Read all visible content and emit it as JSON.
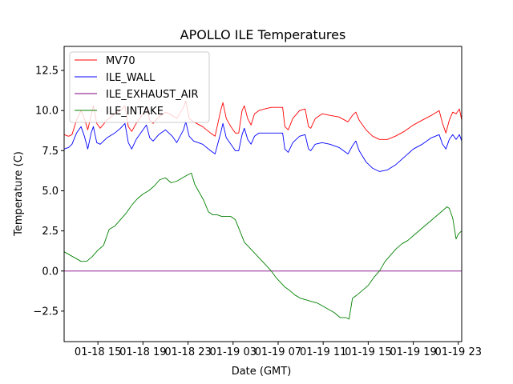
{
  "chart_data": {
    "type": "line",
    "title": "APOLLO ILE Temperatures",
    "xlabel": "Date (GMT)",
    "ylabel": "Temperature (C)",
    "xlim": [
      12.0,
      47.3
    ],
    "ylim": [
      -4.4,
      14.0
    ],
    "grid": false,
    "legend_position": "top-left",
    "x_unit": "hours since 01-18 00:00 GMT",
    "x_ticks": [
      {
        "value": 15,
        "label": "01-18 15"
      },
      {
        "value": 19,
        "label": "01-18 19"
      },
      {
        "value": 23,
        "label": "01-18 23"
      },
      {
        "value": 27,
        "label": "01-19 03"
      },
      {
        "value": 31,
        "label": "01-19 07"
      },
      {
        "value": 35,
        "label": "01-19 11"
      },
      {
        "value": 39,
        "label": "01-19 15"
      },
      {
        "value": 43,
        "label": "01-19 19"
      },
      {
        "value": 47,
        "label": "01-19 23"
      }
    ],
    "y_ticks": [
      {
        "value": -2.5,
        "label": "−2.5"
      },
      {
        "value": 0.0,
        "label": "0.0"
      },
      {
        "value": 2.5,
        "label": "2.5"
      },
      {
        "value": 5.0,
        "label": "5.0"
      },
      {
        "value": 7.5,
        "label": "7.5"
      },
      {
        "value": 10.0,
        "label": "10.0"
      },
      {
        "value": 12.5,
        "label": "12.5"
      }
    ],
    "series": [
      {
        "name": "MV70",
        "color": "#ff0000",
        "points": [
          [
            12.0,
            8.5
          ],
          [
            12.4,
            8.4
          ],
          [
            12.7,
            8.5
          ],
          [
            13.1,
            9.4
          ],
          [
            13.5,
            10.0
          ],
          [
            13.8,
            9.5
          ],
          [
            14.1,
            8.8
          ],
          [
            14.4,
            9.7
          ],
          [
            14.6,
            10.3
          ],
          [
            14.9,
            9.2
          ],
          [
            15.2,
            8.9
          ],
          [
            15.8,
            9.4
          ],
          [
            16.5,
            9.8
          ],
          [
            17.0,
            10.0
          ],
          [
            17.4,
            10.3
          ],
          [
            17.7,
            9.0
          ],
          [
            18.0,
            8.7
          ],
          [
            18.4,
            9.2
          ],
          [
            19.0,
            9.8
          ],
          [
            19.3,
            10.2
          ],
          [
            19.6,
            9.4
          ],
          [
            19.9,
            9.2
          ],
          [
            20.4,
            9.6
          ],
          [
            21.0,
            9.9
          ],
          [
            21.6,
            9.7
          ],
          [
            22.0,
            9.5
          ],
          [
            22.6,
            10.2
          ],
          [
            22.8,
            10.6
          ],
          [
            23.1,
            9.5
          ],
          [
            23.5,
            9.3
          ],
          [
            24.3,
            9.0
          ],
          [
            25.0,
            8.6
          ],
          [
            25.4,
            8.4
          ],
          [
            25.9,
            10.0
          ],
          [
            26.1,
            10.5
          ],
          [
            26.4,
            9.5
          ],
          [
            26.8,
            9.0
          ],
          [
            27.2,
            8.6
          ],
          [
            27.5,
            8.6
          ],
          [
            27.8,
            10.0
          ],
          [
            28.0,
            10.3
          ],
          [
            28.3,
            9.5
          ],
          [
            28.6,
            9.1
          ],
          [
            28.9,
            9.8
          ],
          [
            29.3,
            10.0
          ],
          [
            29.8,
            10.1
          ],
          [
            30.4,
            10.2
          ],
          [
            31.0,
            10.2
          ],
          [
            31.4,
            10.2
          ],
          [
            31.6,
            9.0
          ],
          [
            31.9,
            8.8
          ],
          [
            32.3,
            9.5
          ],
          [
            32.9,
            10.0
          ],
          [
            33.4,
            10.1
          ],
          [
            33.7,
            9.0
          ],
          [
            33.9,
            8.9
          ],
          [
            34.3,
            9.5
          ],
          [
            34.9,
            9.8
          ],
          [
            35.6,
            9.7
          ],
          [
            36.4,
            9.6
          ],
          [
            37.2,
            9.3
          ],
          [
            37.6,
            9.7
          ],
          [
            37.9,
            9.9
          ],
          [
            38.2,
            9.4
          ],
          [
            38.8,
            8.8
          ],
          [
            39.4,
            8.4
          ],
          [
            40.0,
            8.2
          ],
          [
            40.7,
            8.2
          ],
          [
            41.4,
            8.4
          ],
          [
            42.2,
            8.7
          ],
          [
            43.0,
            9.1
          ],
          [
            43.8,
            9.4
          ],
          [
            44.6,
            9.7
          ],
          [
            45.3,
            10.0
          ],
          [
            45.6,
            9.2
          ],
          [
            45.9,
            8.6
          ],
          [
            46.2,
            9.4
          ],
          [
            46.5,
            9.9
          ],
          [
            46.8,
            9.8
          ],
          [
            47.1,
            10.1
          ],
          [
            47.3,
            9.4
          ]
        ]
      },
      {
        "name": "ILE_WALL",
        "color": "#0000ff",
        "points": [
          [
            12.0,
            7.6
          ],
          [
            12.4,
            7.7
          ],
          [
            12.7,
            7.9
          ],
          [
            13.1,
            8.6
          ],
          [
            13.5,
            9.0
          ],
          [
            13.8,
            8.4
          ],
          [
            14.1,
            7.6
          ],
          [
            14.4,
            8.6
          ],
          [
            14.6,
            9.0
          ],
          [
            14.9,
            8.0
          ],
          [
            15.2,
            7.9
          ],
          [
            15.8,
            8.3
          ],
          [
            16.5,
            8.6
          ],
          [
            17.0,
            8.9
          ],
          [
            17.4,
            9.2
          ],
          [
            17.7,
            8.0
          ],
          [
            18.0,
            7.6
          ],
          [
            18.4,
            8.2
          ],
          [
            19.0,
            8.8
          ],
          [
            19.3,
            9.1
          ],
          [
            19.6,
            8.3
          ],
          [
            19.9,
            8.1
          ],
          [
            20.4,
            8.5
          ],
          [
            21.0,
            8.8
          ],
          [
            21.6,
            8.4
          ],
          [
            22.0,
            8.0
          ],
          [
            22.6,
            8.8
          ],
          [
            22.8,
            9.3
          ],
          [
            23.1,
            8.4
          ],
          [
            23.5,
            8.1
          ],
          [
            24.3,
            7.9
          ],
          [
            25.0,
            7.5
          ],
          [
            25.4,
            7.3
          ],
          [
            25.9,
            8.6
          ],
          [
            26.1,
            9.2
          ],
          [
            26.4,
            8.3
          ],
          [
            26.8,
            7.9
          ],
          [
            27.2,
            7.5
          ],
          [
            27.5,
            7.5
          ],
          [
            27.8,
            8.5
          ],
          [
            28.0,
            8.9
          ],
          [
            28.3,
            8.2
          ],
          [
            28.6,
            7.9
          ],
          [
            28.9,
            8.4
          ],
          [
            29.3,
            8.6
          ],
          [
            29.8,
            8.6
          ],
          [
            30.4,
            8.6
          ],
          [
            31.0,
            8.6
          ],
          [
            31.4,
            8.6
          ],
          [
            31.6,
            7.6
          ],
          [
            31.9,
            7.4
          ],
          [
            32.3,
            8.0
          ],
          [
            32.9,
            8.4
          ],
          [
            33.4,
            8.5
          ],
          [
            33.7,
            7.6
          ],
          [
            33.9,
            7.5
          ],
          [
            34.3,
            7.9
          ],
          [
            34.9,
            8.0
          ],
          [
            35.6,
            7.9
          ],
          [
            36.4,
            7.7
          ],
          [
            37.2,
            7.3
          ],
          [
            37.6,
            7.8
          ],
          [
            37.9,
            8.1
          ],
          [
            38.2,
            7.5
          ],
          [
            38.8,
            6.8
          ],
          [
            39.4,
            6.4
          ],
          [
            40.0,
            6.2
          ],
          [
            40.7,
            6.3
          ],
          [
            41.4,
            6.6
          ],
          [
            42.2,
            7.1
          ],
          [
            43.0,
            7.6
          ],
          [
            43.8,
            7.9
          ],
          [
            44.6,
            8.3
          ],
          [
            45.3,
            8.5
          ],
          [
            45.6,
            7.9
          ],
          [
            45.9,
            7.6
          ],
          [
            46.2,
            8.2
          ],
          [
            46.5,
            8.5
          ],
          [
            46.8,
            8.2
          ],
          [
            47.1,
            8.5
          ],
          [
            47.3,
            8.1
          ]
        ]
      },
      {
        "name": "ILE_EXHAUST_AIR",
        "color": "#800080",
        "points": [
          [
            12.0,
            0.0
          ],
          [
            47.3,
            0.0
          ]
        ]
      },
      {
        "name": "ILE_INTAKE",
        "color": "#008000",
        "points": [
          [
            12.0,
            1.2
          ],
          [
            12.5,
            1.0
          ],
          [
            13.0,
            0.8
          ],
          [
            13.5,
            0.6
          ],
          [
            14.0,
            0.6
          ],
          [
            14.5,
            0.9
          ],
          [
            15.0,
            1.3
          ],
          [
            15.5,
            1.6
          ],
          [
            16.0,
            2.6
          ],
          [
            16.5,
            2.8
          ],
          [
            17.0,
            3.2
          ],
          [
            17.5,
            3.6
          ],
          [
            18.0,
            4.1
          ],
          [
            18.5,
            4.5
          ],
          [
            19.0,
            4.8
          ],
          [
            19.5,
            5.0
          ],
          [
            20.0,
            5.3
          ],
          [
            20.5,
            5.7
          ],
          [
            21.0,
            5.8
          ],
          [
            21.5,
            5.5
          ],
          [
            22.0,
            5.6
          ],
          [
            22.5,
            5.8
          ],
          [
            23.0,
            6.0
          ],
          [
            23.3,
            6.1
          ],
          [
            23.6,
            5.4
          ],
          [
            24.0,
            4.9
          ],
          [
            24.4,
            4.4
          ],
          [
            24.8,
            3.7
          ],
          [
            25.2,
            3.5
          ],
          [
            25.6,
            3.5
          ],
          [
            26.0,
            3.4
          ],
          [
            26.4,
            3.4
          ],
          [
            26.8,
            3.4
          ],
          [
            27.2,
            3.2
          ],
          [
            27.6,
            2.5
          ],
          [
            28.0,
            1.8
          ],
          [
            28.4,
            1.5
          ],
          [
            28.8,
            1.2
          ],
          [
            29.2,
            0.9
          ],
          [
            29.6,
            0.6
          ],
          [
            30.0,
            0.3
          ],
          [
            30.4,
            0.0
          ],
          [
            30.8,
            -0.4
          ],
          [
            31.2,
            -0.7
          ],
          [
            31.6,
            -1.0
          ],
          [
            32.0,
            -1.2
          ],
          [
            32.5,
            -1.5
          ],
          [
            33.0,
            -1.7
          ],
          [
            33.5,
            -1.8
          ],
          [
            34.0,
            -1.9
          ],
          [
            34.5,
            -2.0
          ],
          [
            35.0,
            -2.2
          ],
          [
            35.5,
            -2.4
          ],
          [
            36.0,
            -2.6
          ],
          [
            36.5,
            -2.9
          ],
          [
            37.0,
            -2.9
          ],
          [
            37.3,
            -3.0
          ],
          [
            37.6,
            -1.7
          ],
          [
            38.0,
            -1.5
          ],
          [
            38.5,
            -1.2
          ],
          [
            39.0,
            -0.9
          ],
          [
            39.5,
            -0.4
          ],
          [
            40.0,
            0.0
          ],
          [
            40.5,
            0.6
          ],
          [
            41.0,
            1.0
          ],
          [
            41.5,
            1.4
          ],
          [
            42.0,
            1.7
          ],
          [
            42.5,
            1.9
          ],
          [
            43.0,
            2.2
          ],
          [
            43.5,
            2.5
          ],
          [
            44.0,
            2.8
          ],
          [
            44.5,
            3.1
          ],
          [
            45.0,
            3.4
          ],
          [
            45.5,
            3.7
          ],
          [
            46.0,
            4.0
          ],
          [
            46.2,
            3.9
          ],
          [
            46.5,
            3.3
          ],
          [
            46.8,
            2.0
          ],
          [
            47.0,
            2.3
          ],
          [
            47.3,
            2.5
          ]
        ]
      }
    ]
  }
}
